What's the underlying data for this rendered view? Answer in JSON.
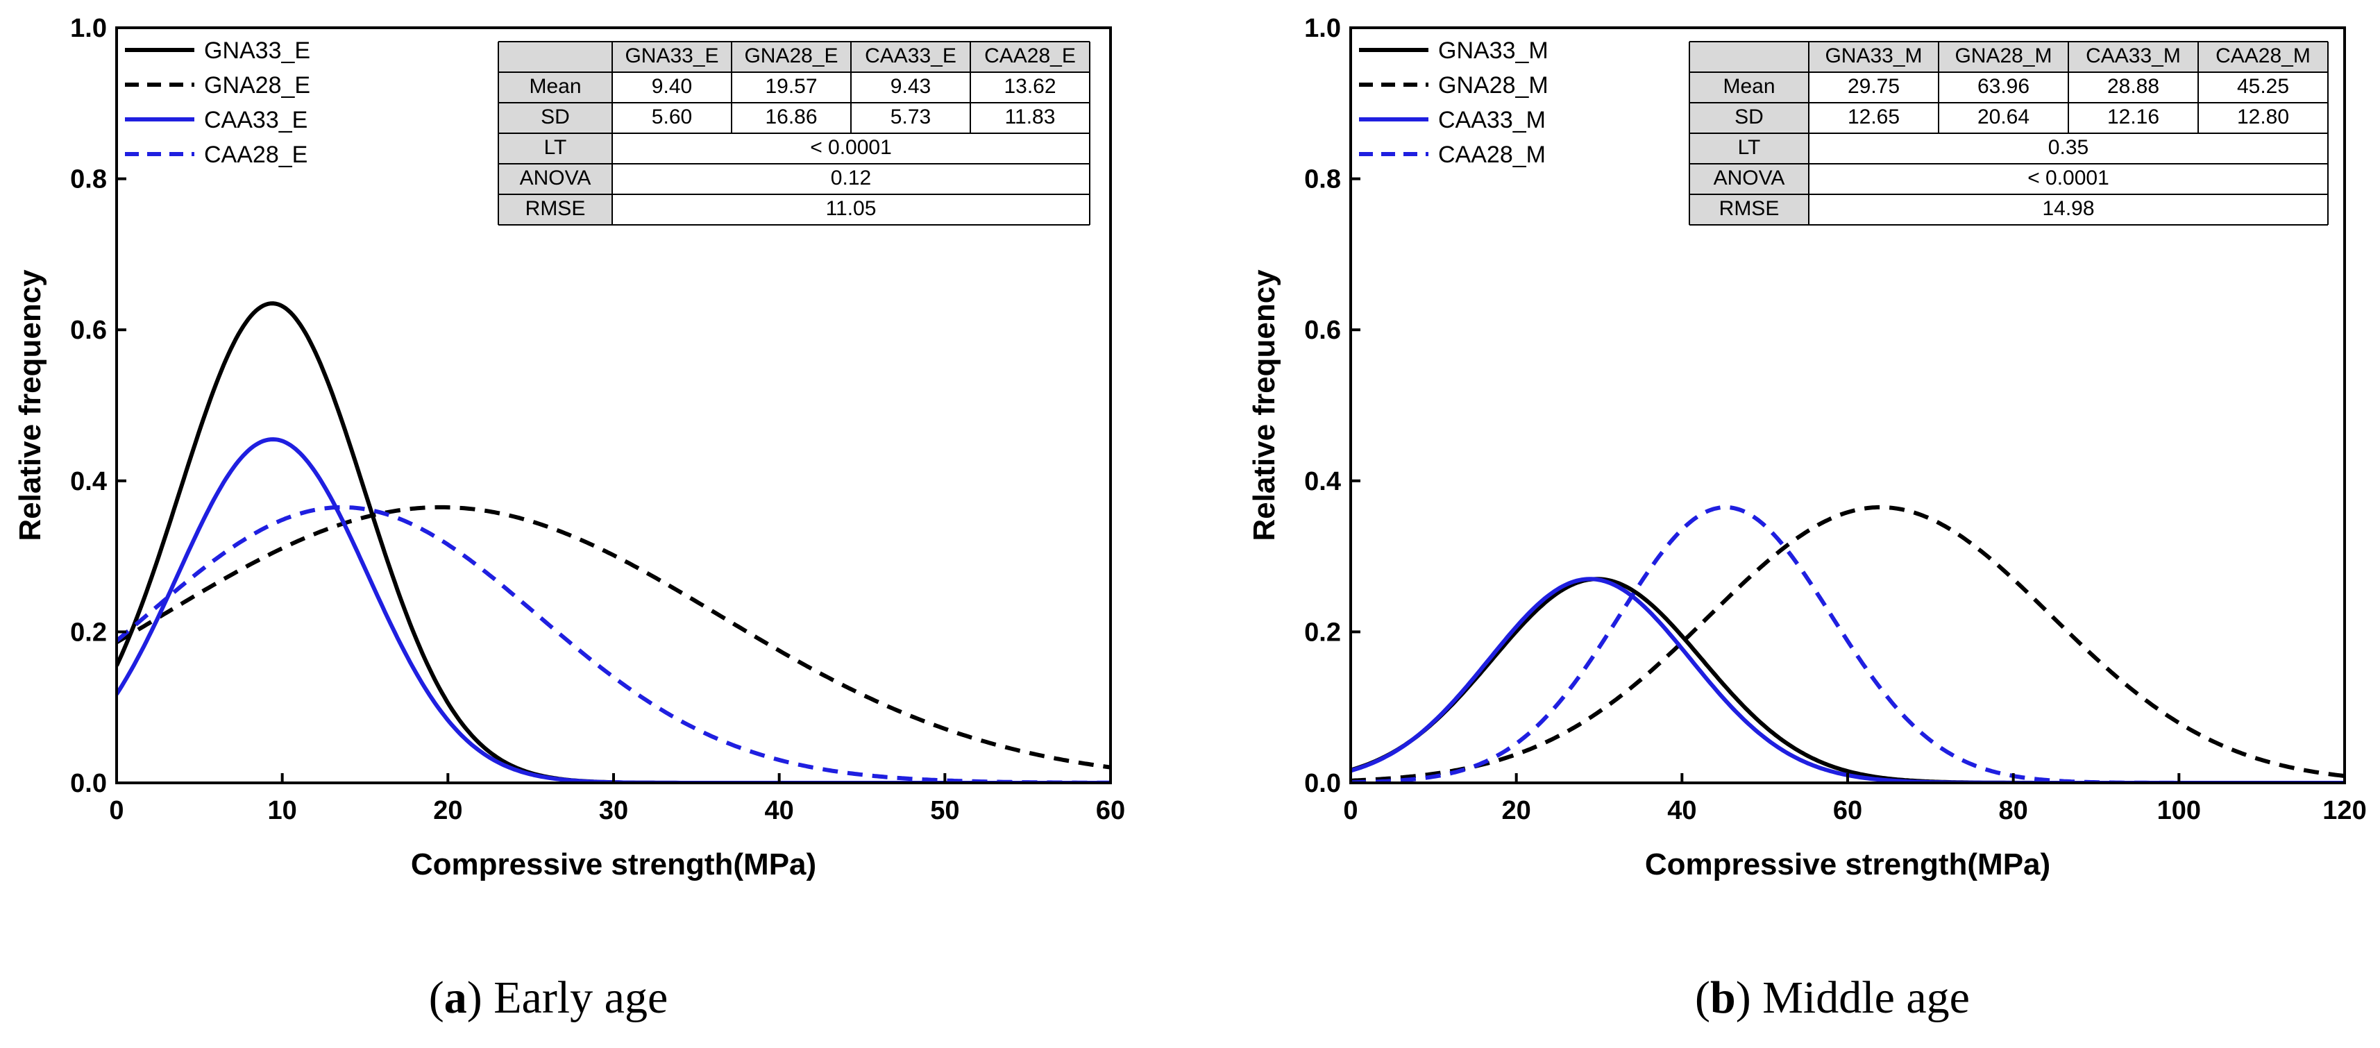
{
  "chart_data": [
    {
      "type": "line",
      "caption_letter": "a",
      "caption_text": "Early age",
      "xlabel": "Compressive strength(MPa)",
      "ylabel": "Relative frequency",
      "xlim": [
        0,
        60
      ],
      "ylim": [
        0,
        1.0
      ],
      "xticks": [
        "0",
        "10",
        "20",
        "30",
        "40",
        "50",
        "60"
      ],
      "yticks": [
        "0.0",
        "0.2",
        "0.4",
        "0.6",
        "0.8",
        "1.0"
      ],
      "series": [
        {
          "name": "GNA33_E",
          "color": "#000000",
          "dashed": false,
          "mean": 9.4,
          "sd": 5.6,
          "peak": 0.635
        },
        {
          "name": "GNA28_E",
          "color": "#000000",
          "dashed": true,
          "mean": 19.57,
          "sd": 16.86,
          "peak": 0.365
        },
        {
          "name": "CAA33_E",
          "color": "#1f1fe0",
          "dashed": false,
          "mean": 9.43,
          "sd": 5.73,
          "peak": 0.455
        },
        {
          "name": "CAA28_E",
          "color": "#1f1fe0",
          "dashed": true,
          "mean": 13.62,
          "sd": 11.83,
          "peak": 0.365
        }
      ],
      "table": {
        "columns": [
          "GNA33_E",
          "GNA28_E",
          "CAA33_E",
          "CAA28_E"
        ],
        "rows": [
          {
            "label": "Mean",
            "values": [
              "9.40",
              "19.57",
              "9.43",
              "13.62"
            ]
          },
          {
            "label": "SD",
            "values": [
              "5.60",
              "16.86",
              "5.73",
              "11.83"
            ]
          },
          {
            "label": "LT",
            "merged": "< 0.0001"
          },
          {
            "label": "ANOVA",
            "merged": "0.12"
          },
          {
            "label": "RMSE",
            "merged": "11.05"
          }
        ]
      }
    },
    {
      "type": "line",
      "caption_letter": "b",
      "caption_text": "Middle age",
      "xlabel": "Compressive strength(MPa)",
      "ylabel": "Relative frequency",
      "xlim": [
        0,
        120
      ],
      "ylim": [
        0,
        1.0
      ],
      "xticks": [
        "0",
        "20",
        "40",
        "60",
        "80",
        "100",
        "120"
      ],
      "yticks": [
        "0.0",
        "0.2",
        "0.4",
        "0.6",
        "0.8",
        "1.0"
      ],
      "series": [
        {
          "name": "GNA33_M",
          "color": "#000000",
          "dashed": false,
          "mean": 29.75,
          "sd": 12.65,
          "peak": 0.27
        },
        {
          "name": "GNA28_M",
          "color": "#000000",
          "dashed": true,
          "mean": 63.96,
          "sd": 20.64,
          "peak": 0.365
        },
        {
          "name": "CAA33_M",
          "color": "#1f1fe0",
          "dashed": false,
          "mean": 28.88,
          "sd": 12.16,
          "peak": 0.27
        },
        {
          "name": "CAA28_M",
          "color": "#1f1fe0",
          "dashed": true,
          "mean": 45.25,
          "sd": 12.8,
          "peak": 0.365
        }
      ],
      "table": {
        "columns": [
          "GNA33_M",
          "GNA28_M",
          "CAA33_M",
          "CAA28_M"
        ],
        "rows": [
          {
            "label": "Mean",
            "values": [
              "29.75",
              "63.96",
              "28.88",
              "45.25"
            ]
          },
          {
            "label": "SD",
            "values": [
              "12.65",
              "20.64",
              "12.16",
              "12.80"
            ]
          },
          {
            "label": "LT",
            "merged": "0.35"
          },
          {
            "label": "ANOVA",
            "merged": "< 0.0001"
          },
          {
            "label": "RMSE",
            "merged": "14.98"
          }
        ]
      }
    }
  ]
}
